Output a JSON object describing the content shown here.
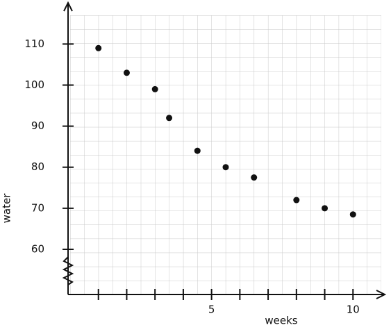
{
  "chart_data": {
    "type": "scatter",
    "x_label": "weeks",
    "y_label": "water",
    "x": [
      1,
      2,
      3,
      3.5,
      4.5,
      5.5,
      6.5,
      8,
      9,
      10
    ],
    "series": [
      {
        "color": "#111111",
        "values": [
          109,
          103,
          99,
          92,
          84,
          80,
          77.5,
          72,
          70,
          68.5
        ]
      }
    ],
    "xlim": [
      0,
      11
    ],
    "ylim": [
      49,
      117
    ],
    "xticks": [
      {
        "value": 1,
        "label": null
      },
      {
        "value": 2,
        "label": null
      },
      {
        "value": 3,
        "label": null
      },
      {
        "value": 4,
        "label": null
      },
      5,
      {
        "value": 6,
        "label": null
      },
      {
        "value": 7,
        "label": null
      },
      {
        "value": 8,
        "label": null
      },
      {
        "value": 9,
        "label": null
      },
      10
    ],
    "yticks": [
      60,
      70,
      80,
      90,
      100,
      110
    ],
    "grid": true
  }
}
